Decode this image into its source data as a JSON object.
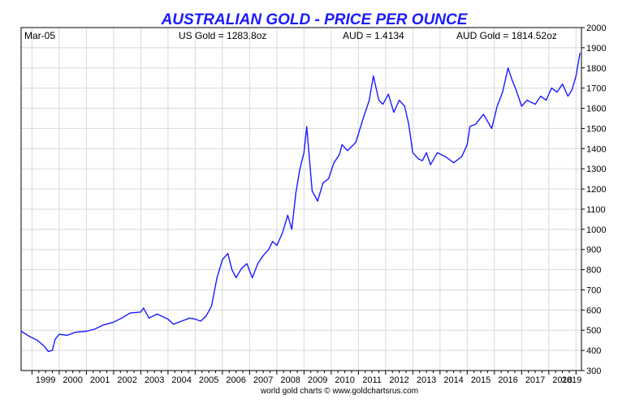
{
  "header": {
    "title": "AUSTRALIAN GOLD - PRICE PER OUNCE",
    "date_label": "Mar-05",
    "us_gold": "US Gold = 1283.8oz",
    "aud_rate": "AUD = 1.4134",
    "aud_gold": "AUD Gold = 1814.52oz"
  },
  "footer": {
    "credit": "world gold charts © www.goldchartsrus.com"
  },
  "colors": {
    "line": "#1a1aff",
    "title": "#1a1aff",
    "grid": "#d8d8d8",
    "frame": "#000000"
  },
  "chart_data": {
    "type": "line",
    "title": "AUSTRALIAN GOLD - PRICE PER OUNCE",
    "xlabel": "",
    "ylabel": "",
    "xlim": [
      1998.6,
      2019.2
    ],
    "ylim": [
      300,
      2000
    ],
    "grid": true,
    "y_axis_side": "right",
    "x_ticks": [
      "1999",
      "2000",
      "2001",
      "2002",
      "2003",
      "2004",
      "2005",
      "2006",
      "2007",
      "2008",
      "2009",
      "2010",
      "2011",
      "2012",
      "2013",
      "2014",
      "2015",
      "2016",
      "2017",
      "2018",
      "2019"
    ],
    "y_ticks": [
      300,
      400,
      500,
      600,
      700,
      800,
      900,
      1000,
      1100,
      1200,
      1300,
      1400,
      1500,
      1600,
      1700,
      1800,
      1900,
      2000
    ],
    "series": [
      {
        "x": [
          1998.6,
          1998.9,
          1999.2,
          1999.45,
          1999.6,
          1999.75,
          1999.85,
          2000.0,
          2000.3,
          2000.6,
          2001.0,
          2001.3,
          2001.6,
          2002.0,
          2002.3,
          2002.6,
          2003.0,
          2003.1,
          2003.3,
          2003.6,
          2004.0,
          2004.2,
          2004.5,
          2004.8,
          2005.0,
          2005.2,
          2005.4,
          2005.6,
          2005.8,
          2006.0,
          2006.2,
          2006.35,
          2006.5,
          2006.7,
          2006.9,
          2007.1,
          2007.3,
          2007.5,
          2007.7,
          2007.85,
          2008.0,
          2008.2,
          2008.4,
          2008.55,
          2008.7,
          2008.85,
          2009.0,
          2009.1,
          2009.2,
          2009.3,
          2009.5,
          2009.7,
          2009.9,
          2010.1,
          2010.3,
          2010.4,
          2010.6,
          2010.9,
          2011.2,
          2011.4,
          2011.55,
          2011.65,
          2011.75,
          2011.9,
          2012.1,
          2012.3,
          2012.5,
          2012.7,
          2012.85,
          2013.0,
          2013.2,
          2013.35,
          2013.5,
          2013.65,
          2013.9,
          2014.2,
          2014.5,
          2014.8,
          2015.0,
          2015.1,
          2015.3,
          2015.6,
          2015.9,
          2016.1,
          2016.3,
          2016.5,
          2016.65,
          2016.8,
          2017.0,
          2017.2,
          2017.5,
          2017.7,
          2017.9,
          2018.1,
          2018.3,
          2018.5,
          2018.7,
          2018.85,
          2019.0,
          2019.1,
          2019.15
        ],
        "values": [
          495,
          470,
          450,
          420,
          395,
          400,
          455,
          480,
          475,
          490,
          495,
          505,
          525,
          540,
          560,
          585,
          590,
          610,
          560,
          580,
          555,
          530,
          545,
          560,
          555,
          545,
          570,
          620,
          760,
          850,
          880,
          800,
          760,
          805,
          830,
          760,
          830,
          870,
          900,
          940,
          920,
          980,
          1070,
          1000,
          1180,
          1300,
          1380,
          1510,
          1350,
          1190,
          1140,
          1230,
          1250,
          1330,
          1370,
          1420,
          1390,
          1430,
          1560,
          1640,
          1760,
          1700,
          1640,
          1620,
          1670,
          1580,
          1640,
          1610,
          1520,
          1380,
          1350,
          1340,
          1380,
          1320,
          1380,
          1360,
          1330,
          1360,
          1420,
          1510,
          1520,
          1570,
          1500,
          1610,
          1680,
          1800,
          1740,
          1690,
          1610,
          1640,
          1620,
          1660,
          1640,
          1700,
          1680,
          1720,
          1660,
          1690,
          1760,
          1840,
          1875
        ]
      }
    ]
  }
}
